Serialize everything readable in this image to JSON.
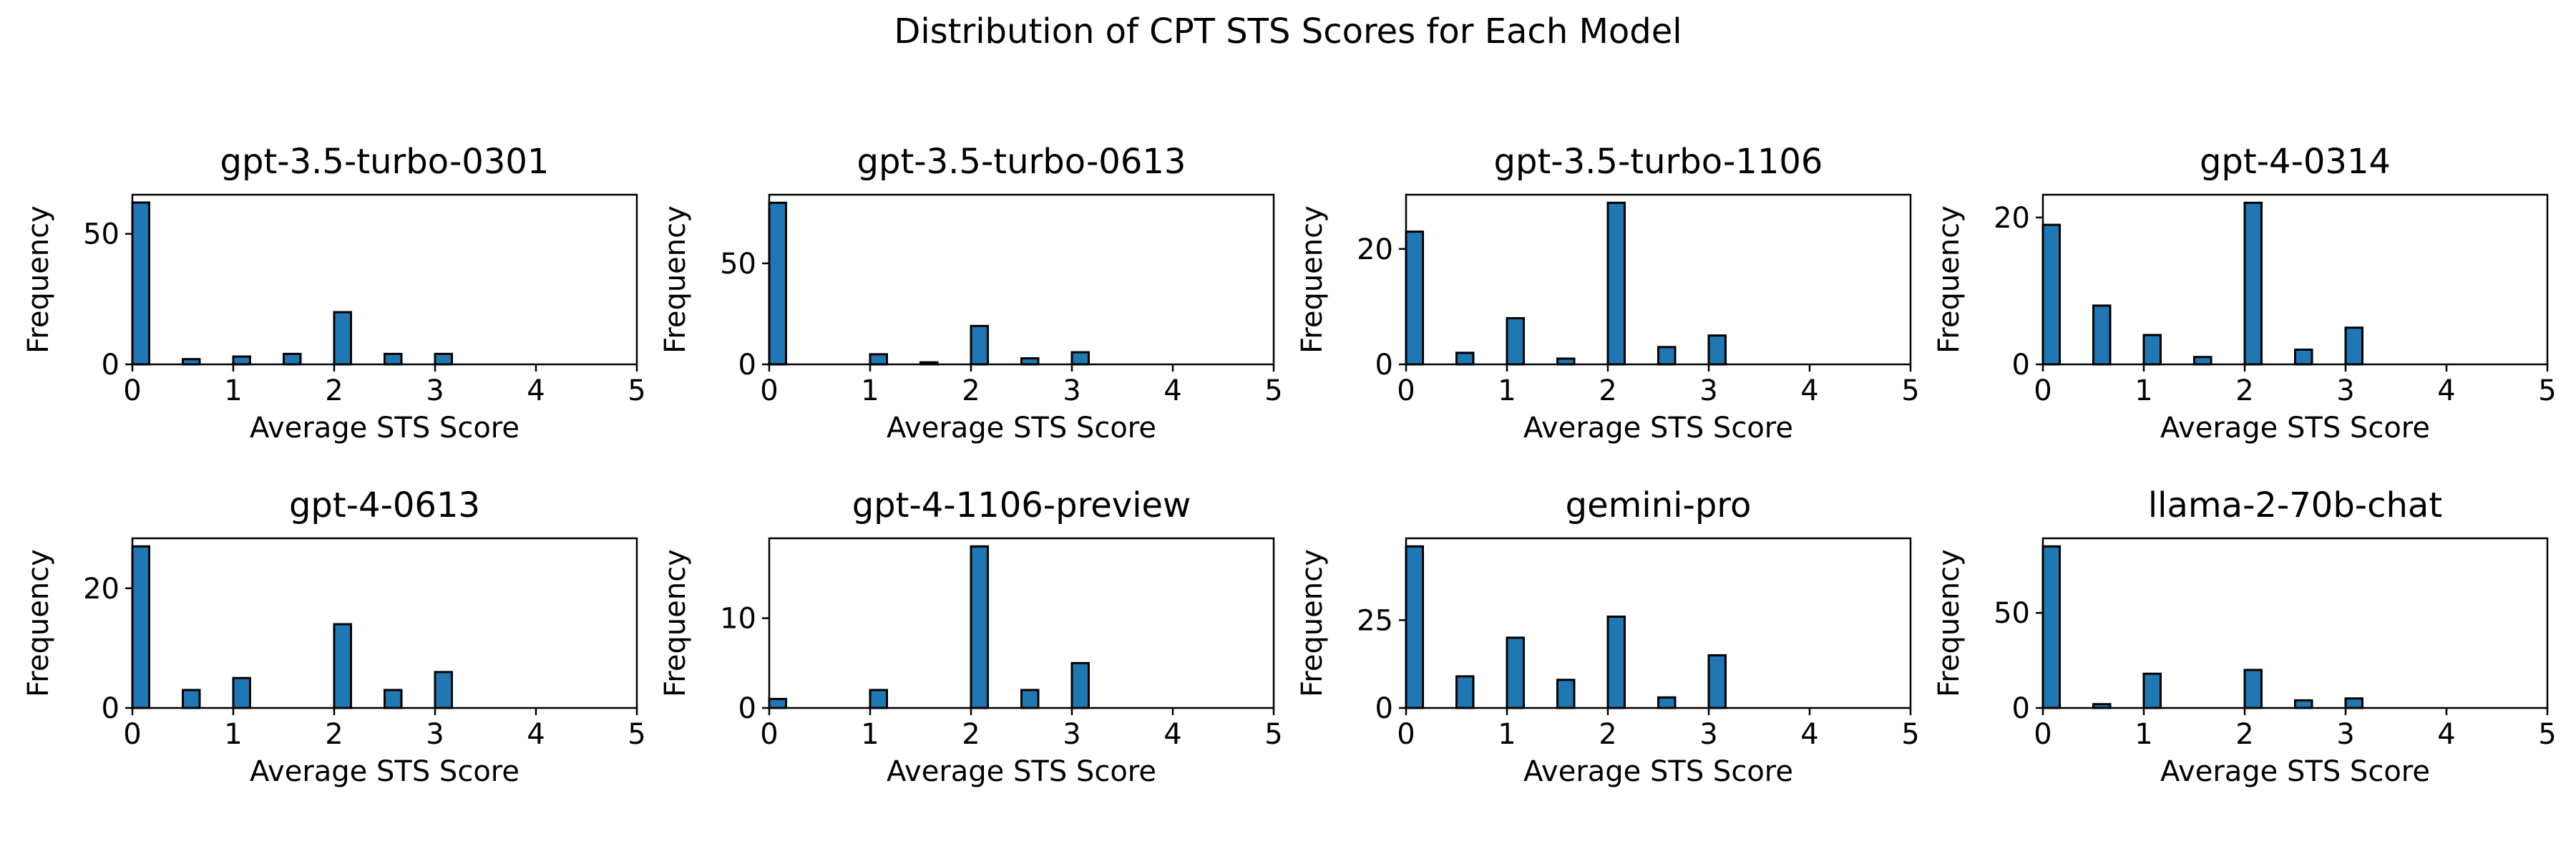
{
  "figure_title": "Distribution of CPT STS Scores for Each Model",
  "colors": {
    "bar_fill": "#1f77b4",
    "bar_edge": "#000000"
  },
  "chart_data": [
    {
      "type": "bar",
      "title": "gpt-3.5-turbo-0301",
      "xlabel": "Average STS Score",
      "ylabel": "Frequency",
      "xlim": [
        0,
        5
      ],
      "ylim": [
        0,
        65
      ],
      "xticks": [
        0,
        1,
        2,
        3,
        4,
        5
      ],
      "yticks": [
        0,
        50
      ],
      "grid": false,
      "x": [
        0,
        0.5,
        1,
        1.5,
        2,
        2.5,
        3
      ],
      "values": [
        62,
        2,
        3,
        4,
        20,
        4,
        4
      ]
    },
    {
      "type": "bar",
      "title": "gpt-3.5-turbo-0613",
      "xlabel": "Average STS Score",
      "ylabel": "Frequency",
      "xlim": [
        0,
        5
      ],
      "ylim": [
        0,
        84
      ],
      "xticks": [
        0,
        1,
        2,
        3,
        4,
        5
      ],
      "yticks": [
        0,
        50
      ],
      "grid": false,
      "x": [
        0,
        1,
        1.5,
        2,
        2.5,
        3
      ],
      "values": [
        80,
        5,
        1,
        19,
        3,
        6
      ]
    },
    {
      "type": "bar",
      "title": "gpt-3.5-turbo-1106",
      "xlabel": "Average STS Score",
      "ylabel": "Frequency",
      "xlim": [
        0,
        5
      ],
      "ylim": [
        0,
        29.4
      ],
      "xticks": [
        0,
        1,
        2,
        3,
        4,
        5
      ],
      "yticks": [
        0,
        20
      ],
      "grid": false,
      "x": [
        0,
        0.5,
        1,
        1.5,
        2,
        2.5,
        3
      ],
      "values": [
        23,
        2,
        8,
        1,
        28,
        3,
        5
      ]
    },
    {
      "type": "bar",
      "title": "gpt-4-0314",
      "xlabel": "Average STS Score",
      "ylabel": "Frequency",
      "xlim": [
        0,
        5
      ],
      "ylim": [
        0,
        23.1
      ],
      "xticks": [
        0,
        1,
        2,
        3,
        4,
        5
      ],
      "yticks": [
        0,
        20
      ],
      "grid": false,
      "x": [
        0,
        0.5,
        1,
        1.5,
        2,
        2.5,
        3
      ],
      "values": [
        19,
        8,
        4,
        1,
        22,
        2,
        5
      ]
    },
    {
      "type": "bar",
      "title": "gpt-4-0613",
      "xlabel": "Average STS Score",
      "ylabel": "Frequency",
      "xlim": [
        0,
        5
      ],
      "ylim": [
        0,
        28.35
      ],
      "xticks": [
        0,
        1,
        2,
        3,
        4,
        5
      ],
      "yticks": [
        0,
        20
      ],
      "grid": false,
      "x": [
        0,
        0.5,
        1,
        2,
        2.5,
        3
      ],
      "values": [
        27,
        3,
        5,
        14,
        3,
        6
      ]
    },
    {
      "type": "bar",
      "title": "gpt-4-1106-preview",
      "xlabel": "Average STS Score",
      "ylabel": "Frequency",
      "xlim": [
        0,
        5
      ],
      "ylim": [
        0,
        18.9
      ],
      "xticks": [
        0,
        1,
        2,
        3,
        4,
        5
      ],
      "yticks": [
        0,
        10
      ],
      "grid": false,
      "x": [
        0,
        1,
        2,
        2.5,
        3
      ],
      "values": [
        1,
        2,
        18,
        2,
        5
      ]
    },
    {
      "type": "bar",
      "title": "gemini-pro",
      "xlabel": "Average STS Score",
      "ylabel": "Frequency",
      "xlim": [
        0,
        5
      ],
      "ylim": [
        0,
        48.3
      ],
      "xticks": [
        0,
        1,
        2,
        3,
        4,
        5
      ],
      "yticks": [
        0,
        25
      ],
      "grid": false,
      "x": [
        0,
        0.5,
        1,
        1.5,
        2,
        2.5,
        3
      ],
      "values": [
        46,
        9,
        20,
        8,
        26,
        3,
        15
      ]
    },
    {
      "type": "bar",
      "title": "llama-2-70b-chat",
      "xlabel": "Average STS Score",
      "ylabel": "Frequency",
      "xlim": [
        0,
        5
      ],
      "ylim": [
        0,
        89.25
      ],
      "xticks": [
        0,
        1,
        2,
        3,
        4,
        5
      ],
      "yticks": [
        0,
        50
      ],
      "grid": false,
      "x": [
        0,
        0.5,
        1,
        2,
        2.5,
        3
      ],
      "values": [
        85,
        2,
        18,
        20,
        4,
        5
      ]
    }
  ]
}
